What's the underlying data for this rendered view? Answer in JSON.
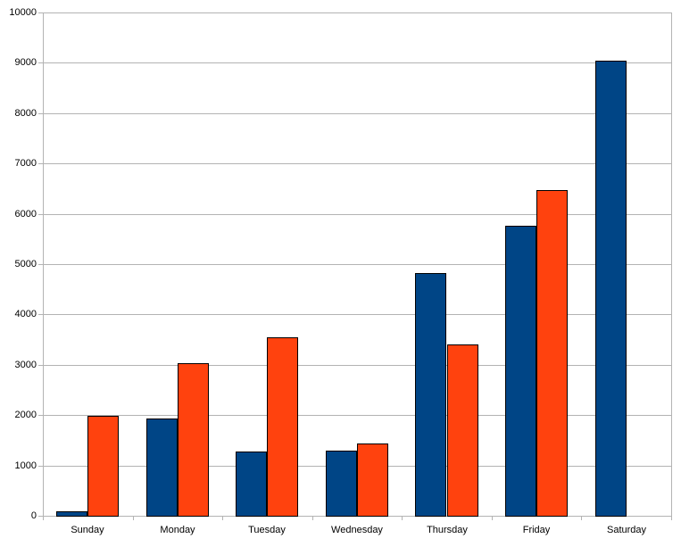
{
  "chart_data": {
    "type": "bar",
    "title": "",
    "xlabel": "",
    "ylabel": "",
    "categories": [
      "Sunday",
      "Monday",
      "Tuesday",
      "Wednesday",
      "Thursday",
      "Friday",
      "Saturday"
    ],
    "series": [
      {
        "name": "series_1",
        "color": "#004586",
        "values": [
          90,
          1940,
          1280,
          1300,
          4820,
          5770,
          9050
        ]
      },
      {
        "name": "series_2",
        "color": "#ff420e",
        "values": [
          1980,
          3030,
          3550,
          1440,
          3410,
          6480,
          null
        ]
      }
    ],
    "ylim": [
      0,
      10000
    ],
    "ytick_step": 1000,
    "ytick_labels": [
      "0",
      "1000",
      "2000",
      "3000",
      "4000",
      "5000",
      "6000",
      "7000",
      "8000",
      "9000",
      "10000"
    ],
    "grid": true,
    "legend": "none",
    "colors": {
      "grid": "#b3b3b3",
      "axis": "#b3b3b3",
      "bar_border": "#000000",
      "text": "#000000",
      "background": "#ffffff"
    }
  }
}
